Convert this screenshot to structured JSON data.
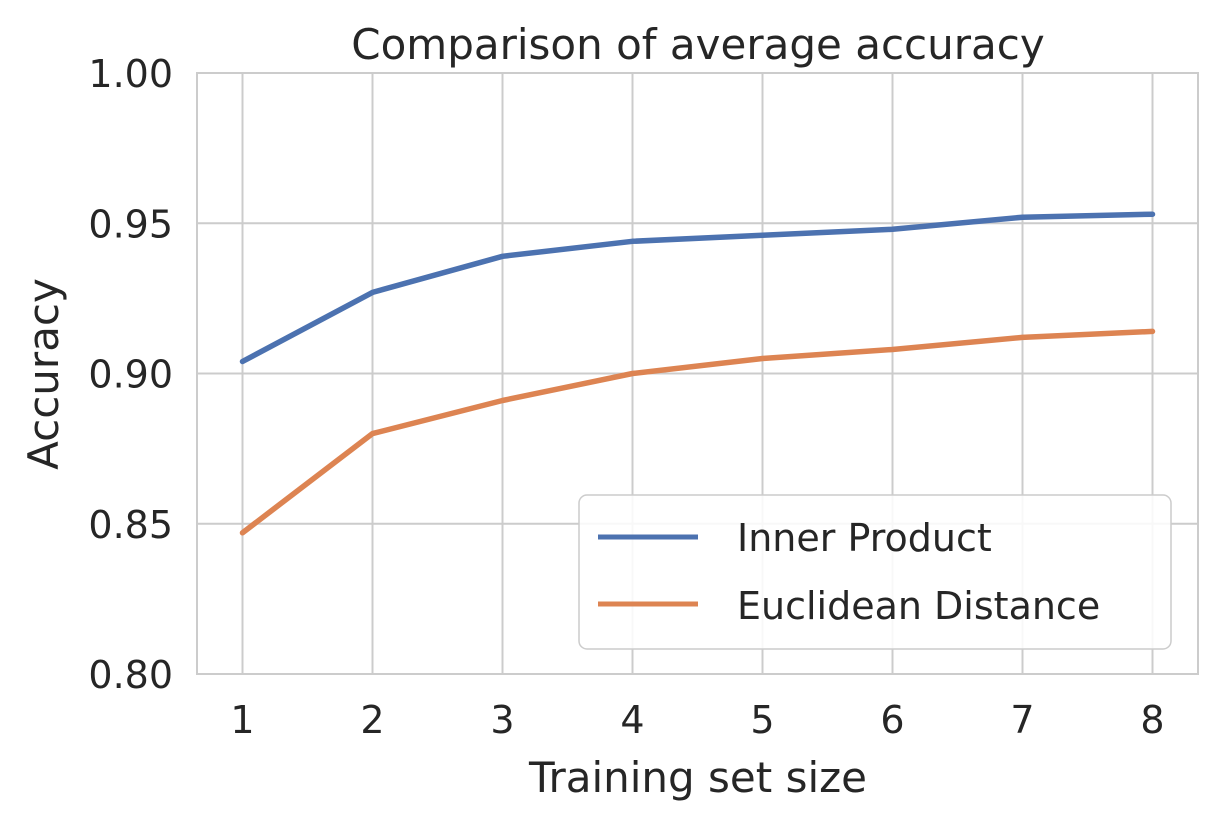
{
  "chart_data": {
    "type": "line",
    "title": "Comparison of average accuracy",
    "xlabel": "Training set size",
    "ylabel": "Accuracy",
    "x": [
      1,
      2,
      3,
      4,
      5,
      6,
      7,
      8
    ],
    "xlim": [
      0.65,
      8.35
    ],
    "ylim": [
      0.8,
      1.0
    ],
    "xticks": [
      "1",
      "2",
      "3",
      "4",
      "5",
      "6",
      "7",
      "8"
    ],
    "yticks": [
      "0.80",
      "0.85",
      "0.90",
      "0.95",
      "1.00"
    ],
    "grid": true,
    "legend_position": "lower-right",
    "series": [
      {
        "name": "Inner Product",
        "color": "#4c72b0",
        "values": [
          0.904,
          0.927,
          0.939,
          0.944,
          0.946,
          0.948,
          0.952,
          0.953
        ]
      },
      {
        "name": "Euclidean Distance",
        "color": "#dd8452",
        "values": [
          0.847,
          0.88,
          0.891,
          0.9,
          0.905,
          0.908,
          0.912,
          0.914
        ]
      }
    ]
  }
}
